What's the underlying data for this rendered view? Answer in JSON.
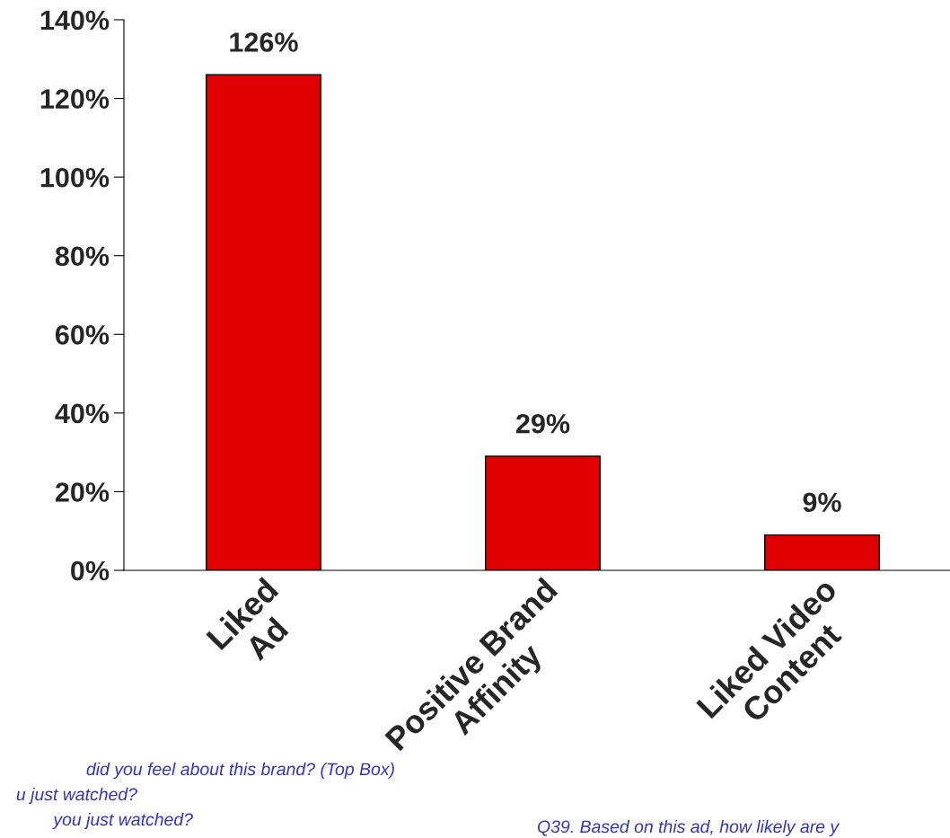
{
  "chart_data": {
    "type": "bar",
    "categories": [
      "Liked\nAd",
      "Positive Brand\nAffinity",
      "Liked Video\nContent"
    ],
    "values": [
      126,
      29,
      9
    ],
    "color": "#e00000",
    "value_labels": [
      "126%",
      "29%",
      "9%"
    ],
    "ylim": [
      0,
      140
    ],
    "yticks": [
      {
        "value": 0,
        "label": "0%"
      },
      {
        "value": 20,
        "label": "20%"
      },
      {
        "value": 40,
        "label": "40%"
      },
      {
        "value": 60,
        "label": "60%"
      },
      {
        "value": 80,
        "label": "80%"
      },
      {
        "value": 100,
        "label": "100%"
      },
      {
        "value": 120,
        "label": "120%"
      },
      {
        "value": 140,
        "label": "140%"
      }
    ],
    "grid": false,
    "annotations": [
      "did you feel about this brand? (Top Box)",
      "u just watched?",
      "you just watched?",
      "Q39. Based on this ad, how likely are y"
    ]
  }
}
